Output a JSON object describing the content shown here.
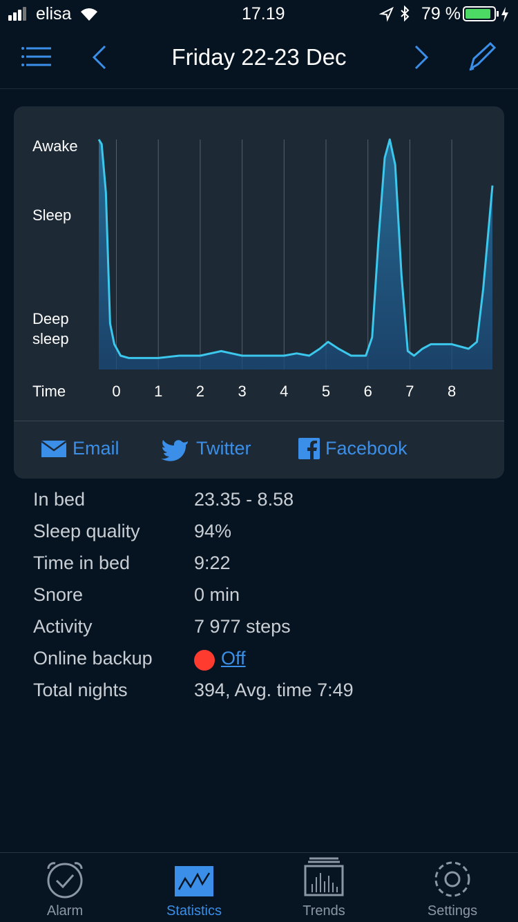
{
  "status_bar": {
    "carrier": "elisa",
    "time": "17.19",
    "battery": "79 %"
  },
  "nav": {
    "title": "Friday 22-23 Dec"
  },
  "chart_data": {
    "type": "line",
    "x_label": "Time",
    "xlim": [
      -0.42,
      8.97
    ],
    "xticks": [
      0,
      1,
      2,
      3,
      4,
      5,
      6,
      7,
      8
    ],
    "ylim": [
      0,
      100
    ],
    "yticks": [
      {
        "value": 97,
        "label": "Awake"
      },
      {
        "value": 67,
        "label": "Sleep"
      },
      {
        "value": 22,
        "label": "Deep sleep"
      }
    ],
    "grid": true,
    "color": "#3cc8ec",
    "x": [
      -0.42,
      -0.35,
      -0.25,
      -0.15,
      -0.05,
      0.1,
      0.3,
      0.6,
      1.0,
      1.5,
      2.0,
      2.5,
      3.0,
      3.5,
      4.0,
      4.3,
      4.6,
      4.85,
      5.05,
      5.3,
      5.6,
      5.95,
      6.1,
      6.25,
      6.4,
      6.52,
      6.65,
      6.8,
      6.95,
      7.1,
      7.3,
      7.5,
      8.0,
      8.4,
      8.6,
      8.75,
      8.97
    ],
    "values": [
      100,
      98,
      77,
      20,
      11,
      6,
      5,
      5,
      5,
      6,
      6,
      8,
      6,
      6,
      6,
      7,
      6,
      9,
      12,
      9,
      6,
      6,
      14,
      56,
      92,
      100,
      89,
      41,
      8,
      6,
      9,
      11,
      11,
      9,
      12,
      35,
      80
    ]
  },
  "share": [
    "Email",
    "Twitter",
    "Facebook"
  ],
  "stats": {
    "rows": [
      [
        "In bed",
        "23.35 - 8.58"
      ],
      [
        "Sleep quality",
        "94%"
      ],
      [
        "Time in bed",
        "9:22"
      ],
      [
        "Snore",
        "0 min"
      ],
      [
        "Activity",
        "7 977 steps"
      ],
      [
        "Online backup",
        "Off"
      ],
      [
        "Total nights",
        "394, Avg. time 7:49"
      ]
    ]
  },
  "tabs": [
    "Alarm",
    "Statistics",
    "Trends",
    "Settings"
  ]
}
